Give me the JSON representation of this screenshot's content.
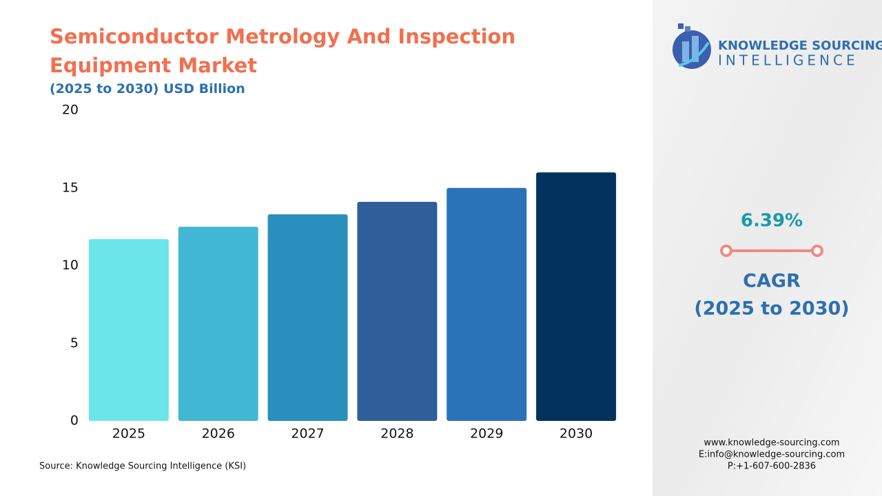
{
  "chart_data": {
    "type": "bar",
    "title": "Semiconductor Metrology And Inspection Equipment Market",
    "subtitle": "(2025 to 2030) USD Billion",
    "categories": [
      "2025",
      "2026",
      "2027",
      "2028",
      "2029",
      "2030"
    ],
    "values": [
      11.7,
      12.5,
      13.3,
      14.1,
      15.0,
      16.0
    ],
    "colors": [
      "#6ce5e8",
      "#42b8d5",
      "#2a8fbd",
      "#2e5f98",
      "#2b73b9",
      "#03325f"
    ],
    "ylim": [
      0,
      20
    ],
    "yticks": [
      0,
      5,
      10,
      15,
      20
    ],
    "grid": false,
    "source": "Source: Knowledge Sourcing Intelligence (KSI)"
  },
  "sidebar": {
    "logo_line1": "KNOWLEDGE SOURCING",
    "logo_line2": "INTELLIGENCE",
    "cagr_value": "6.39%",
    "cagr_label": "CAGR",
    "cagr_period": "(2025 to 2030)",
    "contacts": [
      "www.knowledge-sourcing.com",
      "E:info@knowledge-sourcing.com",
      "P:+1-607-600-2836"
    ]
  }
}
